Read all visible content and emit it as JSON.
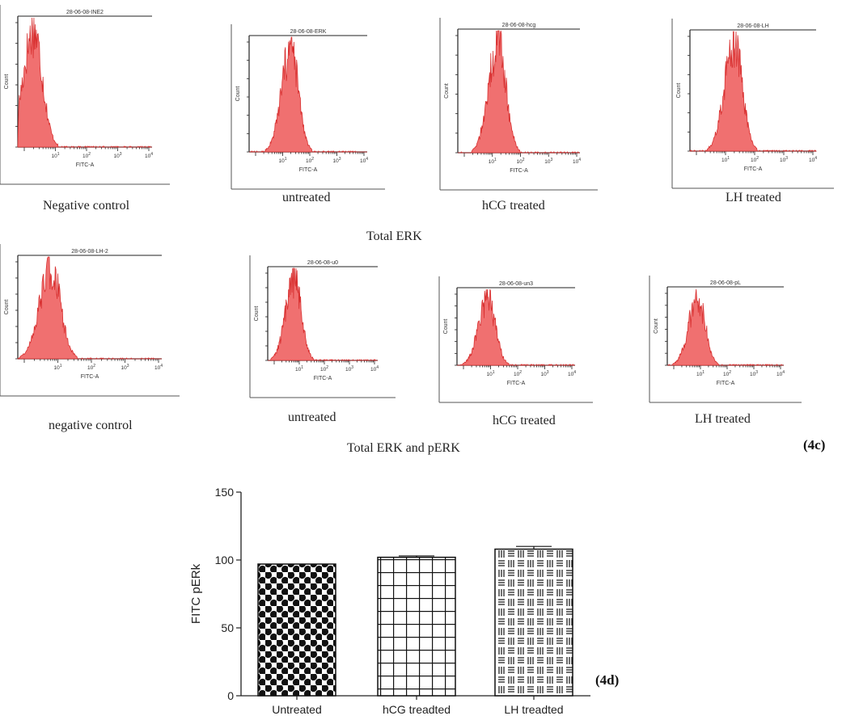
{
  "section_titles": {
    "total_erk": "Total ERK",
    "total_erk_perk": "Total ERK and pERK"
  },
  "figure_labels": {
    "c": "(4c)",
    "d": "(4d)"
  },
  "histograms": {
    "row1": [
      {
        "caption": "Negative control",
        "title": "28-06-08-INE2",
        "x_axis_label": "FITC-A",
        "y_axis_label": "Count",
        "peak_log": 0.3
      },
      {
        "caption": "untreated",
        "title": "28-06-08-ERK",
        "x_axis_label": "FITC-A",
        "y_axis_label": "Count",
        "peak_log": 1.3
      },
      {
        "caption": "hCG treated",
        "title": "28-06-08-hcg",
        "x_axis_label": "FITC-A",
        "y_axis_label": "Count",
        "peak_log": 1.2
      },
      {
        "caption": "LH treated",
        "title": "28-06-08-LH",
        "x_axis_label": "FITC-A",
        "y_axis_label": "Count",
        "peak_log": 1.3
      }
    ],
    "row2": [
      {
        "caption": "negative control",
        "title": "28-06-08-LH-2",
        "x_axis_label": "FITC-A",
        "y_axis_label": "Count",
        "peak_log": 0.8
      },
      {
        "caption": "untreated",
        "title": "28-06-08-u0",
        "x_axis_label": "FITC-A",
        "y_axis_label": "Count",
        "peak_log": 0.8
      },
      {
        "caption": "hCG treated",
        "title": "28-06-08-un3",
        "x_axis_label": "FITC-A",
        "y_axis_label": "Count",
        "peak_log": 0.9
      },
      {
        "caption": "LH treated",
        "title": "28-06-08-pL",
        "x_axis_label": "FITC-A",
        "y_axis_label": "Count",
        "peak_log": 0.9
      }
    ]
  },
  "chart_data": {
    "type": "bar",
    "title": "",
    "xlabel": "",
    "ylabel": "FITC pERk",
    "categories": [
      "Untreated",
      "hCG treadted",
      "LH treadted"
    ],
    "values": [
      97,
      102,
      108
    ],
    "errors": [
      0,
      1,
      2
    ],
    "patterns": [
      "dots",
      "grid",
      "lines"
    ],
    "ylim": [
      0,
      150
    ],
    "yticks": [
      0,
      50,
      100,
      150
    ]
  },
  "colors": {
    "histogram_fill": "#f07070",
    "histogram_stroke": "#d83030",
    "axis": "#222222"
  }
}
